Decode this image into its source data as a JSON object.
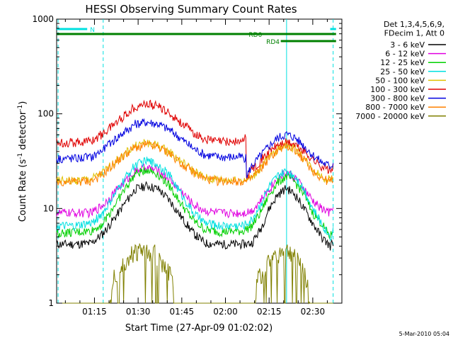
{
  "chart_data": {
    "type": "line",
    "title": "HESSI Observing Summary Count Rates",
    "xlabel": "Start Time (27-Apr-09 01:02:02)",
    "ylabel": "Count Rate (s",
    "ylabel_sup1": "-1",
    "ylabel_mid": " detector",
    "ylabel_sup2": "-1",
    "ylabel_end": ")",
    "y_scale": "log",
    "ylim": [
      1,
      1000
    ],
    "xlim_minutes_since_0100": [
      2.0,
      100.0
    ],
    "x_ticks": [
      {
        "m": 15,
        "label": "01:15"
      },
      {
        "m": 30,
        "label": "01:30"
      },
      {
        "m": 45,
        "label": "01:45"
      },
      {
        "m": 60,
        "label": "02:00"
      },
      {
        "m": 75,
        "label": "02:15"
      },
      {
        "m": 90,
        "label": "02:30"
      }
    ],
    "y_ticks": [
      {
        "v": 1,
        "label": "1"
      },
      {
        "v": 10,
        "label": "10"
      },
      {
        "v": 100,
        "label": "100"
      },
      {
        "v": 1000,
        "label": "1000"
      }
    ],
    "legend_header": [
      "Det 1,3,4,5,6,9,",
      "FDecim 1, Att 0"
    ],
    "legend_placement": "right",
    "series": [
      {
        "name": "3 - 6 keV",
        "color": "#000000",
        "points": [
          [
            2,
            4.2
          ],
          [
            8,
            4.2
          ],
          [
            14,
            4.3
          ],
          [
            18,
            5.5
          ],
          [
            22,
            8
          ],
          [
            26,
            12
          ],
          [
            29,
            16
          ],
          [
            33,
            17.5
          ],
          [
            37,
            16
          ],
          [
            41,
            12
          ],
          [
            45,
            8
          ],
          [
            49,
            5.5
          ],
          [
            53,
            4.3
          ],
          [
            58,
            4.2
          ],
          [
            66,
            4.2
          ],
          [
            69,
            4.3
          ],
          [
            72,
            6
          ],
          [
            75,
            10
          ],
          [
            78,
            14
          ],
          [
            81,
            16.5
          ],
          [
            84,
            14
          ],
          [
            87,
            10
          ],
          [
            90,
            7
          ],
          [
            93,
            5
          ],
          [
            96,
            4
          ],
          [
            97,
            4.5
          ]
        ]
      },
      {
        "name": "6 - 12 keV",
        "color": "#e000e0",
        "points": [
          [
            2,
            9
          ],
          [
            8,
            9
          ],
          [
            14,
            9
          ],
          [
            18,
            11
          ],
          [
            22,
            15
          ],
          [
            26,
            20
          ],
          [
            29,
            25
          ],
          [
            33,
            27
          ],
          [
            37,
            25
          ],
          [
            41,
            20
          ],
          [
            45,
            15
          ],
          [
            49,
            11
          ],
          [
            53,
            9.5
          ],
          [
            58,
            9
          ],
          [
            66,
            9
          ],
          [
            69,
            9.5
          ],
          [
            72,
            12
          ],
          [
            75,
            16
          ],
          [
            78,
            21
          ],
          [
            81,
            24
          ],
          [
            84,
            21
          ],
          [
            87,
            16
          ],
          [
            90,
            12
          ],
          [
            93,
            10
          ],
          [
            96,
            9
          ],
          [
            97,
            10
          ]
        ]
      },
      {
        "name": "12 - 25 keV",
        "color": "#00d000",
        "points": [
          [
            2,
            5.5
          ],
          [
            8,
            5.6
          ],
          [
            14,
            5.8
          ],
          [
            18,
            7
          ],
          [
            22,
            11
          ],
          [
            26,
            17
          ],
          [
            29,
            23
          ],
          [
            33,
            26
          ],
          [
            37,
            23
          ],
          [
            41,
            17
          ],
          [
            45,
            11
          ],
          [
            49,
            7.5
          ],
          [
            53,
            6
          ],
          [
            58,
            5.7
          ],
          [
            66,
            5.8
          ],
          [
            69,
            6.5
          ],
          [
            72,
            9
          ],
          [
            75,
            14
          ],
          [
            78,
            19
          ],
          [
            81,
            22
          ],
          [
            84,
            19
          ],
          [
            87,
            14
          ],
          [
            90,
            9
          ],
          [
            93,
            7
          ],
          [
            96,
            5
          ],
          [
            97,
            6
          ]
        ]
      },
      {
        "name": "25 - 50 keV",
        "color": "#00e0e0",
        "points": [
          [
            2,
            6.5
          ],
          [
            8,
            6.5
          ],
          [
            14,
            7
          ],
          [
            18,
            9
          ],
          [
            22,
            14
          ],
          [
            26,
            22
          ],
          [
            29,
            29
          ],
          [
            33,
            32
          ],
          [
            37,
            29
          ],
          [
            41,
            22
          ],
          [
            45,
            14
          ],
          [
            49,
            9
          ],
          [
            53,
            7
          ],
          [
            58,
            6.6
          ],
          [
            66,
            6.6
          ],
          [
            69,
            7.5
          ],
          [
            72,
            11
          ],
          [
            75,
            17
          ],
          [
            78,
            22
          ],
          [
            81,
            25
          ],
          [
            84,
            22
          ],
          [
            87,
            16
          ],
          [
            90,
            10
          ],
          [
            93,
            7
          ],
          [
            96,
            5
          ],
          [
            97,
            6
          ]
        ]
      },
      {
        "name": "50 - 100 keV",
        "color": "#e0c000",
        "points": [
          [
            2,
            19.5
          ],
          [
            8,
            19.8
          ],
          [
            14,
            20.5
          ],
          [
            18,
            24
          ],
          [
            22,
            31
          ],
          [
            26,
            39
          ],
          [
            29,
            46
          ],
          [
            33,
            50
          ],
          [
            37,
            46
          ],
          [
            41,
            39
          ],
          [
            45,
            31
          ],
          [
            49,
            25
          ],
          [
            53,
            21
          ],
          [
            58,
            20
          ],
          [
            66,
            20
          ],
          [
            69,
            21
          ],
          [
            72,
            27
          ],
          [
            75,
            35
          ],
          [
            78,
            43
          ],
          [
            81,
            48
          ],
          [
            84,
            43
          ],
          [
            87,
            34
          ],
          [
            90,
            26
          ],
          [
            93,
            22
          ],
          [
            96,
            20
          ],
          [
            97,
            22
          ]
        ]
      },
      {
        "name": "100 - 300 keV",
        "color": "#e00000",
        "points": [
          [
            2,
            50
          ],
          [
            8,
            50
          ],
          [
            14,
            52
          ],
          [
            18,
            62
          ],
          [
            22,
            80
          ],
          [
            26,
            100
          ],
          [
            29,
            120
          ],
          [
            33,
            128
          ],
          [
            37,
            120
          ],
          [
            41,
            100
          ],
          [
            45,
            80
          ],
          [
            49,
            63
          ],
          [
            53,
            54
          ],
          [
            58,
            51
          ],
          [
            66,
            51
          ],
          [
            67,
            60
          ],
          [
            67.2,
            21
          ],
          [
            69,
            26
          ],
          [
            72,
            32
          ],
          [
            75,
            40
          ],
          [
            78,
            47
          ],
          [
            81,
            50
          ],
          [
            84,
            47
          ],
          [
            87,
            40
          ],
          [
            90,
            33
          ],
          [
            93,
            28
          ],
          [
            96,
            25
          ],
          [
            97,
            27
          ]
        ]
      },
      {
        "name": "300 - 800 keV",
        "color": "#0000e0",
        "points": [
          [
            2,
            34
          ],
          [
            8,
            34
          ],
          [
            14,
            35
          ],
          [
            18,
            42
          ],
          [
            22,
            54
          ],
          [
            26,
            67
          ],
          [
            29,
            78
          ],
          [
            33,
            82
          ],
          [
            37,
            78
          ],
          [
            41,
            67
          ],
          [
            45,
            54
          ],
          [
            49,
            43
          ],
          [
            53,
            37
          ],
          [
            58,
            35
          ],
          [
            66,
            35
          ],
          [
            67,
            34
          ],
          [
            67.2,
            22
          ],
          [
            69,
            28
          ],
          [
            72,
            36
          ],
          [
            75,
            46
          ],
          [
            78,
            56
          ],
          [
            81,
            61
          ],
          [
            84,
            56
          ],
          [
            87,
            46
          ],
          [
            90,
            37
          ],
          [
            93,
            31
          ],
          [
            96,
            28
          ],
          [
            97,
            30
          ]
        ]
      },
      {
        "name": "800 - 7000 keV",
        "color": "#ff8000",
        "points": [
          [
            2,
            19
          ],
          [
            8,
            19.2
          ],
          [
            14,
            19.5
          ],
          [
            18,
            23
          ],
          [
            22,
            30
          ],
          [
            26,
            38
          ],
          [
            29,
            44
          ],
          [
            33,
            47
          ],
          [
            37,
            44
          ],
          [
            41,
            38
          ],
          [
            45,
            30
          ],
          [
            49,
            24
          ],
          [
            53,
            20.5
          ],
          [
            58,
            19.5
          ],
          [
            66,
            19.5
          ],
          [
            67,
            19
          ],
          [
            69,
            21
          ],
          [
            72,
            26
          ],
          [
            75,
            34
          ],
          [
            78,
            41
          ],
          [
            81,
            46
          ],
          [
            84,
            41
          ],
          [
            87,
            33
          ],
          [
            90,
            25
          ],
          [
            93,
            21
          ],
          [
            96,
            19
          ],
          [
            97,
            21
          ]
        ]
      },
      {
        "name": "7000 - 20000 keV",
        "color": "#808000",
        "points": [
          [
            2,
            1
          ],
          [
            20,
            1
          ],
          [
            21,
            1.9
          ],
          [
            23,
            2.4
          ],
          [
            25,
            2.9
          ],
          [
            27,
            3.4
          ],
          [
            30,
            3.8
          ],
          [
            33,
            3.8
          ],
          [
            36,
            3.6
          ],
          [
            38,
            3
          ],
          [
            40,
            2.4
          ],
          [
            42,
            1.9
          ],
          [
            43,
            1
          ],
          [
            70,
            1
          ],
          [
            71,
            1.9
          ],
          [
            73,
            2.4
          ],
          [
            75,
            2.9
          ],
          [
            77,
            3.3
          ],
          [
            80,
            3.8
          ],
          [
            83,
            3.6
          ],
          [
            85,
            3
          ],
          [
            87,
            2.4
          ],
          [
            88,
            1.9
          ],
          [
            89,
            1
          ],
          [
            97,
            1
          ]
        ]
      }
    ],
    "state_bars": [
      {
        "label": "N",
        "color": "#00e0e0",
        "segments": [
          [
            2,
            12.5
          ],
          [
            96,
            98
          ]
        ],
        "label_m": 13.5,
        "row": 1
      },
      {
        "label": "RD0",
        "color": "#008000",
        "segments": [
          [
            2,
            98
          ]
        ],
        "label_m": 68,
        "row": 2
      },
      {
        "label": "RD4",
        "color": "#008000",
        "segments": [
          [
            79,
            98
          ]
        ],
        "label_m": 74,
        "row": 3
      }
    ],
    "vertical_markers": [
      {
        "m": 2.5,
        "style": "dashed",
        "color": "#00e0e0"
      },
      {
        "m": 18,
        "style": "dashed",
        "color": "#00e0e0"
      },
      {
        "m": 81,
        "style": "solid",
        "color": "#00e0e0"
      },
      {
        "m": 97,
        "style": "dashed",
        "color": "#00e0e0"
      }
    ]
  },
  "footer": {
    "timestamp": "5-Mar-2010 05:04"
  }
}
